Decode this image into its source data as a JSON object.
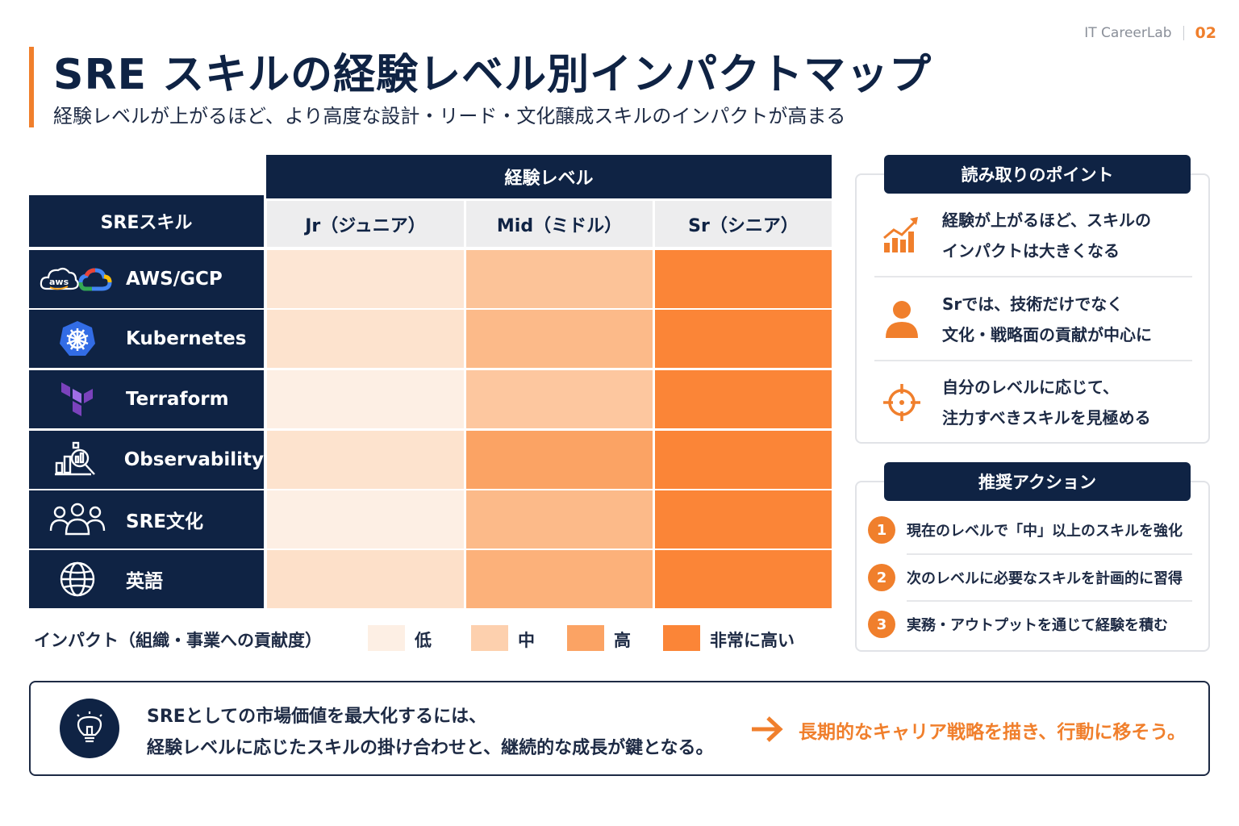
{
  "brand": {
    "name": "IT CareerLab",
    "page": "02"
  },
  "header": {
    "title": "SRE スキルの経験レベル別インパクトマップ",
    "subtitle": "経験レベルが上がるほど、より高度な設計・リード・文化醸成スキルのインパクトが高まる"
  },
  "chart_data": {
    "type": "heatmap",
    "row_header": "SREスキル",
    "column_group_label": "経験レベル",
    "columns": [
      "Jr（ジュニア）",
      "Mid（ミドル）",
      "Sr（シニア）"
    ],
    "rows": [
      {
        "label": "AWS/GCP",
        "icon": "cloud-aws-gcp-icon",
        "values": [
          1.3,
          2.3,
          4
        ]
      },
      {
        "label": "Kubernetes",
        "icon": "kubernetes-helm-icon",
        "values": [
          1.4,
          2.5,
          4
        ]
      },
      {
        "label": "Terraform",
        "icon": "terraform-icon",
        "values": [
          1,
          2.2,
          4
        ]
      },
      {
        "label": "Observability",
        "icon": "chart-magnifier-icon",
        "values": [
          1.4,
          3,
          4
        ]
      },
      {
        "label": "SRE文化",
        "icon": "people-group-icon",
        "values": [
          1,
          2.5,
          4
        ]
      },
      {
        "label": "英語",
        "icon": "globe-icon",
        "values": [
          1.5,
          2.7,
          4
        ]
      }
    ],
    "scale": [
      {
        "label": "低",
        "value": 1,
        "color": "#fdefe4"
      },
      {
        "label": "中",
        "value": 2,
        "color": "#fdd0ae"
      },
      {
        "label": "高",
        "value": 3,
        "color": "#fba364"
      },
      {
        "label": "非常に高い",
        "value": 4,
        "color": "#fb8537"
      }
    ],
    "legend_title": "インパクト（組織・事業への貢献度）",
    "legend_position": "bottom"
  },
  "points": {
    "title": "読み取りのポイント",
    "items": [
      {
        "icon": "growth-chart-icon",
        "lines": [
          "経験が上がるほど、スキルの",
          "インパクトは大きくなる"
        ]
      },
      {
        "icon": "person-icon",
        "lines": [
          "Srでは、技術だけでなく",
          "文化・戦略面の貢献が中心に"
        ]
      },
      {
        "icon": "target-icon",
        "lines": [
          "自分のレベルに応じて、",
          "注力すべきスキルを見極める"
        ]
      }
    ]
  },
  "actions": {
    "title": "推奨アクション",
    "items": [
      {
        "num": "1",
        "text": "現在のレベルで「中」以上のスキルを強化"
      },
      {
        "num": "2",
        "text": "次のレベルに必要なスキルを計画的に習得"
      },
      {
        "num": "3",
        "text": "実務・アウトプットを通じて経験を積む"
      }
    ]
  },
  "footer": {
    "line1": "SREとしての市場価値を最大化するには、",
    "line2": "経験レベルに応じたスキルの掛け合わせと、継続的な成長が鍵となる。",
    "cta": "長期的なキャリア戦略を描き、行動に移そう。"
  },
  "colors": {
    "navy": "#0f2344",
    "accent": "#f07f2c"
  }
}
